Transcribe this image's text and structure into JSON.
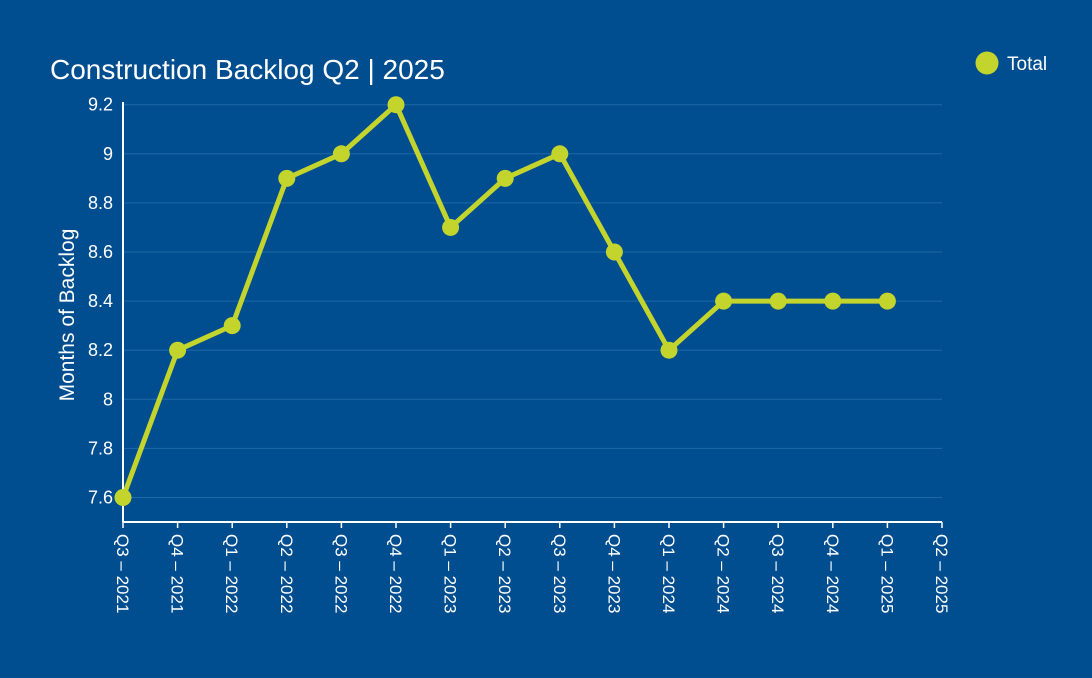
{
  "chart_data": {
    "type": "line",
    "title": "Construction Backlog Q2 | 2025",
    "xlabel": "",
    "ylabel": "Months of Backlog",
    "ylim": [
      7.5,
      9.2
    ],
    "yticks": [
      7.6,
      7.8,
      8,
      8.2,
      8.4,
      8.6,
      8.8,
      9,
      9.2
    ],
    "ytick_labels": [
      "7.6",
      "7.8",
      "8",
      "8.2",
      "8.4",
      "8.6",
      "8.8",
      "9",
      "9.2"
    ],
    "categories": [
      "Q3 – 2021",
      "Q4 – 2021",
      "Q1 – 2022",
      "Q2 – 2022",
      "Q3 – 2022",
      "Q4 – 2022",
      "Q1 – 2023",
      "Q2 – 2023",
      "Q3 – 2023",
      "Q4 – 2023",
      "Q1 – 2024",
      "Q2 – 2024",
      "Q3 – 2024",
      "Q4 – 2024",
      "Q1 – 2025",
      "Q2 – 2025"
    ],
    "series": [
      {
        "name": "Total",
        "values": [
          7.6,
          8.2,
          8.3,
          8.9,
          9.0,
          9.2,
          8.7,
          8.9,
          9.0,
          8.6,
          8.2,
          8.4,
          8.4,
          8.4,
          8.4,
          null
        ]
      }
    ],
    "grid": true,
    "legend_position": "top-right",
    "colors": {
      "background": "#004d8f",
      "series": "#c3d52c",
      "grid": "#1e6aa5",
      "axis": "#ffffff",
      "text": "#ffffff"
    }
  }
}
